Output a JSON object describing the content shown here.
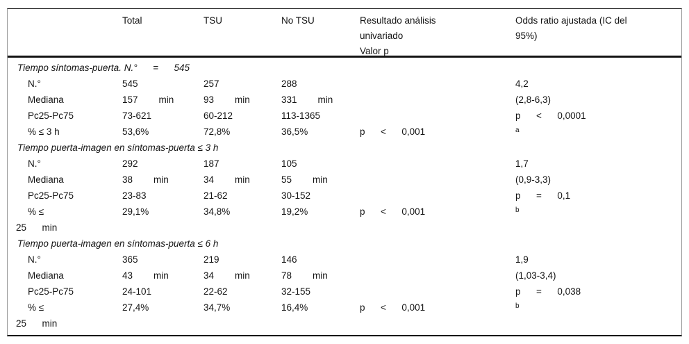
{
  "colors": {
    "text": "#141414",
    "background": "#ffffff",
    "rule": "#141414"
  },
  "header": {
    "cells": [
      "",
      "Total",
      "TSU",
      "No TSU",
      "Resultado análisis\nunivariado\nValor p",
      "Odds ratio ajustada (IC del\n95%)"
    ]
  },
  "sections": [
    {
      "title": "Tiempo síntomas-puerta. N.°      =      545",
      "rows": [
        {
          "label": "N.°",
          "values": [
            "545",
            "257",
            "288",
            "",
            "4,2"
          ]
        },
        {
          "label": "Mediana",
          "values": [
            "157        min",
            "93        min",
            "331        min",
            "",
            "(2,8-6,3)"
          ]
        },
        {
          "label": "Pc25-Pc75",
          "values": [
            "73-621",
            "60-212",
            "113-1365",
            "",
            "p      <      0,0001"
          ]
        },
        {
          "label": "% ≤ 3 h",
          "values": [
            "53,6%",
            "72,8%",
            "36,5%",
            "p      <      0,001",
            "a"
          ],
          "marker": true
        }
      ]
    },
    {
      "title": "Tiempo puerta-imagen en síntomas-puerta ≤ 3 h",
      "rows": [
        {
          "label": "N.°",
          "values": [
            "292",
            "187",
            "105",
            "",
            "1,7"
          ]
        },
        {
          "label": "Mediana",
          "values": [
            "38        min",
            "34        min",
            "55        min",
            "",
            "(0,9-3,3)"
          ]
        },
        {
          "label": "Pc25-Pc75",
          "values": [
            "23-83",
            "21-62",
            "30-152",
            "",
            "p      =      0,1"
          ]
        },
        {
          "label": "% ≤",
          "label2": "25      min",
          "values": [
            "29,1%",
            "34,8%",
            "19,2%",
            "p      <      0,001",
            "b"
          ],
          "marker": true
        }
      ]
    },
    {
      "title": "Tiempo puerta-imagen en síntomas-puerta ≤ 6 h",
      "rows": [
        {
          "label": "N.°",
          "values": [
            "365",
            "219",
            "146",
            "",
            "1,9"
          ]
        },
        {
          "label": "Mediana",
          "values": [
            "43        min",
            "34        min",
            "78        min",
            "",
            "(1,03-3,4)"
          ]
        },
        {
          "label": "Pc25-Pc75",
          "values": [
            "24-101",
            "22-62",
            "32-155",
            "",
            "p      =      0,038"
          ]
        },
        {
          "label": "% ≤",
          "label2": "25      min",
          "values": [
            "27,4%",
            "34,7%",
            "16,4%",
            "p      <      0,001",
            "b"
          ],
          "marker": true
        }
      ]
    }
  ]
}
